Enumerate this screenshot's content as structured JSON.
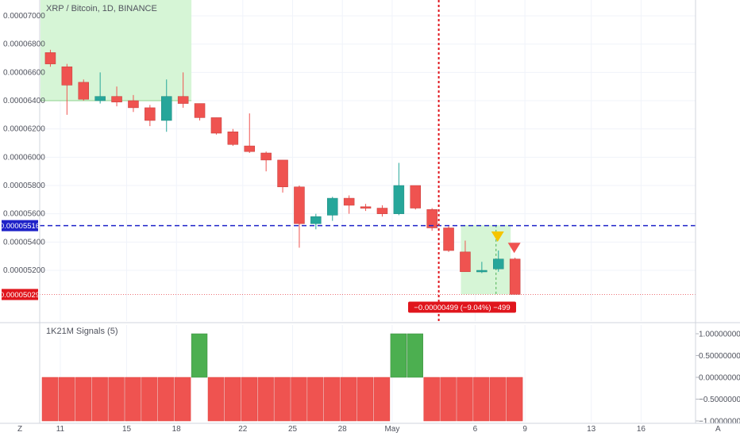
{
  "chart_title": "XRP / Bitcoin, 1D, BINANCE",
  "indicator_title": "1K21M Signals (5)",
  "colors": {
    "up": "#26a69a",
    "down": "#ef5350",
    "grid": "#f0f3fa",
    "blue_line": "#1e22c8",
    "red_line": "#e0151c",
    "green_zone": "#d6f5d6",
    "signal_up": "#4caf50",
    "signal_down": "#ef5350",
    "triangle_yellow": "#f5c400",
    "triangle_red": "#ef5350"
  },
  "chart_data": {
    "type": "candlestick",
    "y_ticks": [
      "0.00007000",
      "0.00006800",
      "0.00006600",
      "0.00006400",
      "0.00006200",
      "0.00006000",
      "0.00005800",
      "0.00005600",
      "0.00005400",
      "0.00005200"
    ],
    "x_ticks": [
      "11",
      "15",
      "18",
      "22",
      "25",
      "28",
      "May",
      "6",
      "9",
      "13",
      "16"
    ],
    "ohlc": [
      {
        "x": 10,
        "o": 6.74,
        "h": 6.76,
        "l": 6.64,
        "c": 6.66
      },
      {
        "x": 11,
        "o": 6.64,
        "h": 6.66,
        "l": 6.3,
        "c": 6.51
      },
      {
        "x": 12,
        "o": 6.53,
        "h": 6.55,
        "l": 6.4,
        "c": 6.41
      },
      {
        "x": 13,
        "o": 6.4,
        "h": 6.6,
        "l": 6.38,
        "c": 6.43
      },
      {
        "x": 14,
        "o": 6.43,
        "h": 6.5,
        "l": 6.36,
        "c": 6.39
      },
      {
        "x": 15,
        "o": 6.4,
        "h": 6.44,
        "l": 6.32,
        "c": 6.35
      },
      {
        "x": 16,
        "o": 6.35,
        "h": 6.37,
        "l": 6.22,
        "c": 6.26
      },
      {
        "x": 17,
        "o": 6.26,
        "h": 6.55,
        "l": 6.18,
        "c": 6.43
      },
      {
        "x": 18,
        "o": 6.43,
        "h": 6.6,
        "l": 6.35,
        "c": 6.38
      },
      {
        "x": 19,
        "o": 6.38,
        "h": 6.38,
        "l": 6.26,
        "c": 6.28
      },
      {
        "x": 20,
        "o": 6.28,
        "h": 6.28,
        "l": 6.16,
        "c": 6.17
      },
      {
        "x": 21,
        "o": 6.18,
        "h": 6.2,
        "l": 6.08,
        "c": 6.09
      },
      {
        "x": 22,
        "o": 6.08,
        "h": 6.31,
        "l": 6.03,
        "c": 6.04
      },
      {
        "x": 23,
        "o": 6.03,
        "h": 6.04,
        "l": 5.9,
        "c": 5.98
      },
      {
        "x": 24,
        "o": 5.98,
        "h": 5.98,
        "l": 5.75,
        "c": 5.79
      },
      {
        "x": 25,
        "o": 5.79,
        "h": 5.8,
        "l": 5.36,
        "c": 5.53
      },
      {
        "x": 26,
        "o": 5.53,
        "h": 5.6,
        "l": 5.49,
        "c": 5.58
      },
      {
        "x": 27,
        "o": 5.59,
        "h": 5.72,
        "l": 5.55,
        "c": 5.71
      },
      {
        "x": 28,
        "o": 5.71,
        "h": 5.73,
        "l": 5.6,
        "c": 5.66
      },
      {
        "x": 29,
        "o": 5.65,
        "h": 5.67,
        "l": 5.62,
        "c": 5.64
      },
      {
        "x": 30,
        "o": 5.64,
        "h": 5.66,
        "l": 5.58,
        "c": 5.6
      },
      {
        "x": 31,
        "o": 5.6,
        "h": 5.96,
        "l": 5.59,
        "c": 5.8
      },
      {
        "x": 32,
        "o": 5.8,
        "h": 5.8,
        "l": 5.63,
        "c": 5.64
      },
      {
        "x": 33,
        "o": 5.63,
        "h": 5.64,
        "l": 5.48,
        "c": 5.5
      },
      {
        "x": 34,
        "o": 5.5,
        "h": 5.52,
        "l": 5.33,
        "c": 5.34
      },
      {
        "x": 35,
        "o": 5.33,
        "h": 5.41,
        "l": 5.19,
        "c": 5.19
      },
      {
        "x": 36,
        "o": 5.19,
        "h": 5.26,
        "l": 5.18,
        "c": 5.2
      },
      {
        "x": 37,
        "o": 5.21,
        "h": 5.34,
        "l": 5.19,
        "c": 5.28
      },
      {
        "x": 38,
        "o": 5.28,
        "h": 5.29,
        "l": 5.03,
        "c": 5.03
      }
    ],
    "y_range": [
      5.03,
      7.1
    ],
    "blue_line": {
      "value": 5.516,
      "label": "0.00005516"
    },
    "current_price": {
      "value": 5.029,
      "label": "0.00005029"
    },
    "measure_label": "−0.00000499 (−9.04%) −499",
    "green_zone_top_left": {
      "x_from": 9.5,
      "x_to": 18.5,
      "y_from": 6.4,
      "y_to": 7.1
    },
    "green_zone_bottom_right": {
      "x_from": 35,
      "x_to": 37,
      "y_from": 5.03,
      "y_to": 5.52
    },
    "vertical_red_line_x": 34.2,
    "triangles": [
      {
        "x": 37,
        "value": 5.43,
        "color": "yellow"
      },
      {
        "x": 38,
        "value": 5.35,
        "color": "red"
      }
    ],
    "signals": {
      "y_ticks": [
        "1.00000000",
        "0.50000000",
        "0.00000000",
        "−0.50000000",
        "−1.00000000"
      ],
      "bars": [
        {
          "x": 10,
          "v": -1
        },
        {
          "x": 11,
          "v": -1
        },
        {
          "x": 12,
          "v": -1
        },
        {
          "x": 13,
          "v": -1
        },
        {
          "x": 14,
          "v": -1
        },
        {
          "x": 15,
          "v": -1
        },
        {
          "x": 16,
          "v": -1
        },
        {
          "x": 17,
          "v": -1
        },
        {
          "x": 18,
          "v": -1
        },
        {
          "x": 19,
          "v": 1
        },
        {
          "x": 20,
          "v": -1
        },
        {
          "x": 21,
          "v": -1
        },
        {
          "x": 22,
          "v": -1
        },
        {
          "x": 23,
          "v": -1
        },
        {
          "x": 24,
          "v": -1
        },
        {
          "x": 25,
          "v": -1
        },
        {
          "x": 26,
          "v": -1
        },
        {
          "x": 27,
          "v": -1
        },
        {
          "x": 28,
          "v": -1
        },
        {
          "x": 29,
          "v": -1
        },
        {
          "x": 30,
          "v": -1
        },
        {
          "x": 31,
          "v": 1
        },
        {
          "x": 32,
          "v": 1
        },
        {
          "x": 33,
          "v": -1
        },
        {
          "x": 34,
          "v": -1
        },
        {
          "x": 35,
          "v": -1
        },
        {
          "x": 36,
          "v": -1
        },
        {
          "x": 37,
          "v": -1
        },
        {
          "x": 38,
          "v": -1
        }
      ]
    }
  },
  "bottom_left_label": "Z",
  "bottom_right_label": "A"
}
